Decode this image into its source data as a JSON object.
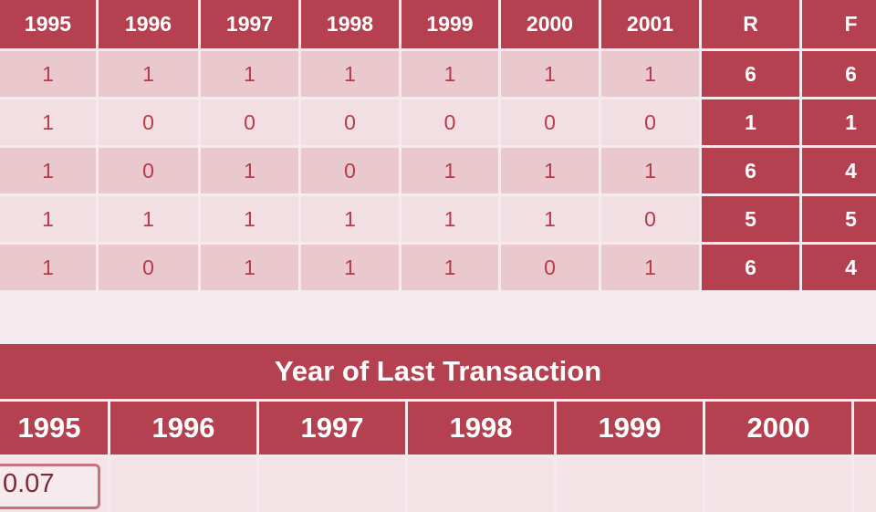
{
  "top_table": {
    "headers": [
      "1995",
      "1996",
      "1997",
      "1998",
      "1999",
      "2000",
      "2001",
      "R",
      "F"
    ],
    "rows": [
      {
        "years": [
          "1",
          "1",
          "1",
          "1",
          "1",
          "1",
          "1"
        ],
        "r": "6",
        "f": "6"
      },
      {
        "years": [
          "1",
          "0",
          "0",
          "0",
          "0",
          "0",
          "0"
        ],
        "r": "1",
        "f": "1"
      },
      {
        "years": [
          "1",
          "0",
          "1",
          "0",
          "1",
          "1",
          "1"
        ],
        "r": "6",
        "f": "4"
      },
      {
        "years": [
          "1",
          "1",
          "1",
          "1",
          "1",
          "1",
          "0"
        ],
        "r": "5",
        "f": "5"
      },
      {
        "years": [
          "1",
          "0",
          "1",
          "1",
          "1",
          "0",
          "1"
        ],
        "r": "6",
        "f": "4"
      }
    ]
  },
  "bottom_table": {
    "title": "Year of Last Transaction",
    "headers": [
      "1995",
      "1996",
      "1997",
      "1998",
      "1999",
      "2000"
    ],
    "first_value": "0.07"
  },
  "colors": {
    "header_bg": "#b5404f",
    "row_odd": "#e9c8ce",
    "row_even": "#f2dfe3",
    "text_red": "#b83a4a",
    "page_bg": "#f7eaee"
  }
}
